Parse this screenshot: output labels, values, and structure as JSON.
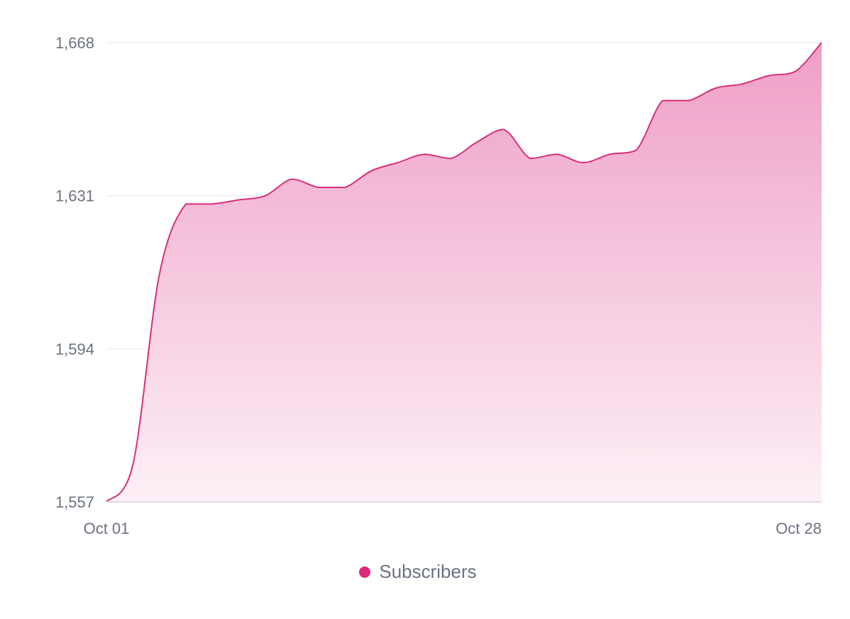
{
  "chart_data": {
    "type": "area",
    "title": "",
    "xlabel": "",
    "ylabel": "",
    "x": [
      "Oct 01",
      "Oct 02",
      "Oct 03",
      "Oct 04",
      "Oct 05",
      "Oct 06",
      "Oct 07",
      "Oct 08",
      "Oct 09",
      "Oct 10",
      "Oct 11",
      "Oct 12",
      "Oct 13",
      "Oct 14",
      "Oct 15",
      "Oct 16",
      "Oct 17",
      "Oct 18",
      "Oct 19",
      "Oct 20",
      "Oct 21",
      "Oct 22",
      "Oct 23",
      "Oct 24",
      "Oct 25",
      "Oct 26",
      "Oct 27",
      "Oct 28"
    ],
    "x_tick_labels": [
      "Oct 01",
      "Oct 28"
    ],
    "y_ticks": [
      1557,
      1594,
      1631,
      1668
    ],
    "y_tick_labels": [
      "1,557",
      "1,594",
      "1,631",
      "1,668"
    ],
    "ylim": [
      1557,
      1668
    ],
    "series": [
      {
        "name": "Subscribers",
        "values": [
          1557,
          1566,
          1612,
          1629,
          1629,
          1630,
          1631,
          1635,
          1633,
          1633,
          1637,
          1639,
          1641,
          1640,
          1644,
          1647,
          1640,
          1641,
          1639,
          1641,
          1642,
          1654,
          1654,
          1657,
          1658,
          1660,
          1661,
          1668
        ]
      }
    ],
    "grid": true,
    "legend_position": "bottom-center",
    "colors": {
      "line": "#d8307a",
      "fill_top": "#ee9fc6",
      "fill_bottom": "#fdf0f6",
      "grid": "#eceef2",
      "axis": "#d3cfe0",
      "legend_dot": "#e0287a"
    }
  }
}
